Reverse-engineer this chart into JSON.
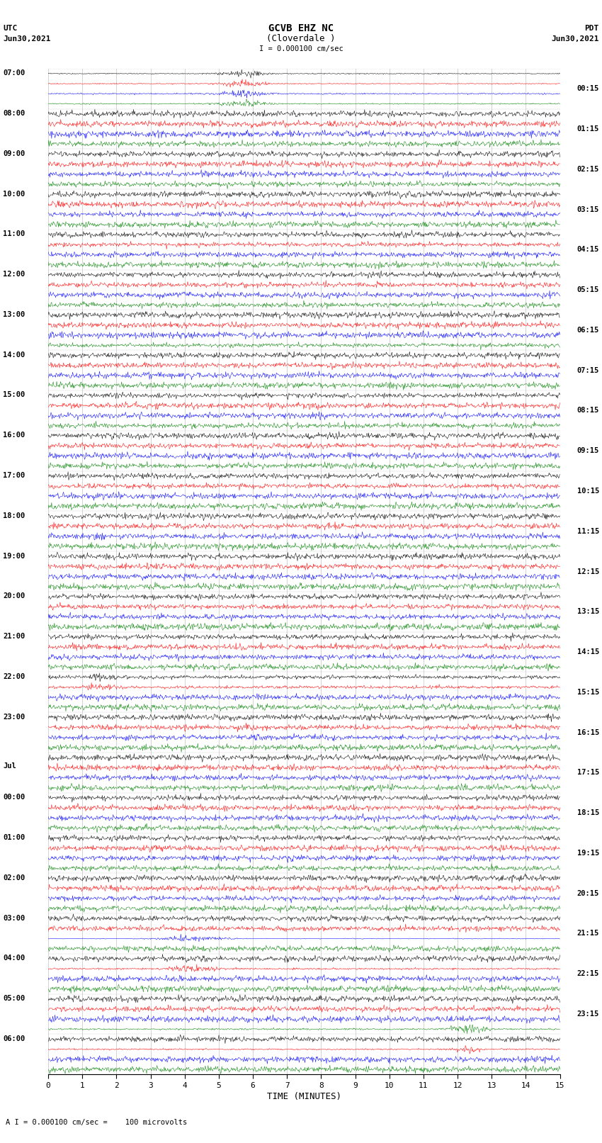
{
  "title_line1": "GCVB EHZ NC",
  "title_line2": "(Cloverdale )",
  "scale_label": "I = 0.000100 cm/sec",
  "left_label_top": "UTC",
  "left_label_date": "Jun30,2021",
  "right_label_top": "PDT",
  "right_label_date": "Jun30,2021",
  "bottom_label": "TIME (MINUTES)",
  "bottom_note": "A I = 0.000100 cm/sec =    100 microvolts",
  "utc_times": [
    "07:00",
    "08:00",
    "09:00",
    "10:00",
    "11:00",
    "12:00",
    "13:00",
    "14:00",
    "15:00",
    "16:00",
    "17:00",
    "18:00",
    "19:00",
    "20:00",
    "21:00",
    "22:00",
    "23:00",
    "Jul",
    "00:00",
    "01:00",
    "02:00",
    "03:00",
    "04:00",
    "05:00",
    "06:00"
  ],
  "pdt_times": [
    "00:15",
    "01:15",
    "02:15",
    "03:15",
    "04:15",
    "05:15",
    "06:15",
    "07:15",
    "08:15",
    "09:15",
    "10:15",
    "11:15",
    "12:15",
    "13:15",
    "14:15",
    "15:15",
    "16:15",
    "17:15",
    "18:15",
    "19:15",
    "20:15",
    "21:15",
    "22:15",
    "23:15"
  ],
  "n_rows": 25,
  "traces_per_row": 4,
  "colors": [
    "black",
    "red",
    "blue",
    "green"
  ],
  "bg_color": "#ffffff",
  "plot_bg": "#ffffff",
  "grid_color": "#aaaaaa",
  "text_color": "#000000",
  "n_points": 900,
  "noise_scale": 0.15,
  "figsize": [
    8.5,
    16.13
  ],
  "dpi": 100
}
